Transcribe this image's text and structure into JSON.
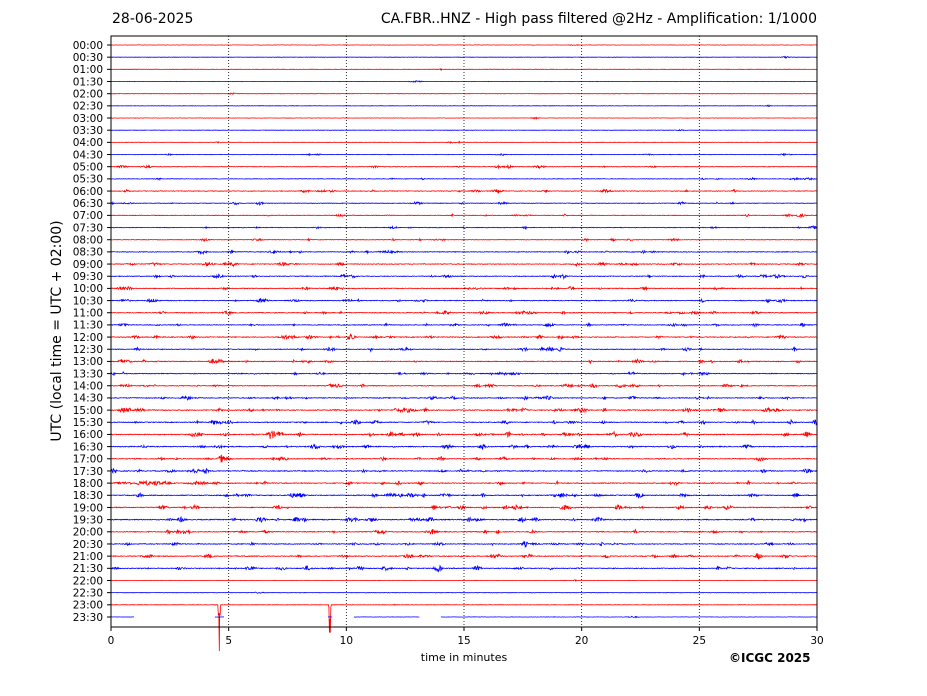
{
  "header": {
    "date": "28-06-2025",
    "title": "CA.FBR..HNZ - High pass filtered @2Hz - Amplification: 1/1000"
  },
  "footer": {
    "copyright": "©ICGC 2025"
  },
  "colors": {
    "even_trace": "#ff0000",
    "odd_trace": "#0000ff",
    "grid": "#000000",
    "axis": "#000000"
  },
  "chart_data": {
    "type": "line",
    "subtype": "helicorder",
    "xlabel": "time in minutes",
    "ylabel": "UTC (local time = UTC + 02:00)",
    "xlim": [
      0,
      30
    ],
    "x_ticks": [
      0,
      5,
      10,
      15,
      20,
      25,
      30
    ],
    "vertical_grid": "dotted",
    "row_labels": [
      "00:00",
      "00:30",
      "01:00",
      "01:30",
      "02:00",
      "02:30",
      "03:00",
      "03:30",
      "04:00",
      "04:30",
      "05:00",
      "05:30",
      "06:00",
      "06:30",
      "07:00",
      "07:30",
      "08:00",
      "08:30",
      "09:00",
      "09:30",
      "10:00",
      "10:30",
      "11:00",
      "11:30",
      "12:00",
      "12:30",
      "13:00",
      "13:30",
      "14:00",
      "14:30",
      "15:00",
      "15:30",
      "16:00",
      "16:30",
      "17:00",
      "17:30",
      "18:00",
      "18:30",
      "19:00",
      "19:30",
      "20:00",
      "20:30",
      "21:00",
      "21:30",
      "22:00",
      "22:30",
      "23:00",
      "23:30"
    ],
    "activity_level": [
      0.05,
      0.05,
      0.05,
      0.05,
      0.05,
      0.05,
      0.05,
      0.05,
      0.1,
      0.2,
      0.4,
      0.3,
      0.5,
      0.4,
      0.4,
      0.4,
      0.4,
      0.6,
      0.7,
      0.7,
      0.7,
      0.7,
      0.7,
      0.7,
      0.8,
      0.7,
      0.8,
      0.7,
      0.7,
      0.8,
      1.0,
      0.9,
      1.0,
      0.9,
      0.8,
      0.9,
      0.9,
      1.0,
      1.0,
      1.0,
      0.9,
      0.8,
      0.8,
      0.9,
      0.05,
      0.05,
      0.05,
      0.05
    ],
    "events": [
      {
        "row": "06:30",
        "minute": 5.3,
        "amplitude": 0.25
      },
      {
        "row": "12:00",
        "minute": 10.2,
        "amplitude": 0.6
      },
      {
        "row": "15:30",
        "minute": 30.0,
        "amplitude": 0.8
      },
      {
        "row": "16:00",
        "minute": 6.8,
        "amplitude": 0.8
      },
      {
        "row": "17:00",
        "minute": 4.7,
        "amplitude": 0.6
      },
      {
        "row": "20:30",
        "minute": 17.6,
        "amplitude": 0.4
      },
      {
        "row": "21:00",
        "minute": 27.5,
        "amplitude": 0.45
      },
      {
        "row": "21:30",
        "minute": 13.9,
        "amplitude": 0.6
      },
      {
        "row": "21:30",
        "minute": 5.9,
        "amplitude": 0.5
      },
      {
        "row": "23:00",
        "minute": 4.6,
        "amplitude": 3.8
      },
      {
        "row": "23:00",
        "minute": 9.3,
        "amplitude": 3.8
      }
    ],
    "gaps": [
      {
        "row": "23:30",
        "start": 1.0,
        "end": 4.4
      },
      {
        "row": "23:30",
        "start": 4.8,
        "end": 9.2
      },
      {
        "row": "23:30",
        "start": 9.4,
        "end": 10.3
      },
      {
        "row": "23:30",
        "start": 13.1,
        "end": 14.0
      }
    ]
  }
}
